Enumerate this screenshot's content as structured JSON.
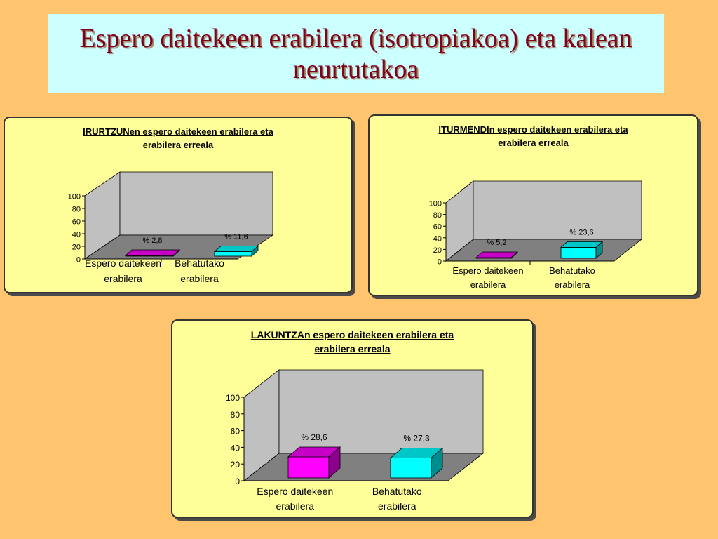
{
  "slide": {
    "title": "Espero daitekeen erabilera (isotropiakoa) eta kalean neurtutakoa"
  },
  "colors": {
    "background": "#FFC56E",
    "title_box": "#CCFFFF",
    "title_text": "#800020",
    "panel": "#FFFF99",
    "wall": "#C0C0C0",
    "floor": "#808080",
    "series_expected": "#FF00FF",
    "series_observed": "#00FFFF"
  },
  "chart_data": [
    {
      "type": "bar",
      "title_line1": "IRURTZUNen espero daitekeen erabilera eta",
      "title_line2": "erabilera erreala",
      "categories": [
        [
          "Espero daitekeen",
          "erabilera"
        ],
        [
          "Behatutako",
          "erabilera"
        ]
      ],
      "values": [
        2.8,
        11.6
      ],
      "data_labels": [
        "% 2,8",
        "% 11,6"
      ],
      "yticks": [
        "0",
        "20",
        "40",
        "60",
        "80",
        "100"
      ],
      "ylim": [
        0,
        100
      ],
      "grid": false,
      "style": "3d-bar"
    },
    {
      "type": "bar",
      "title_line1": "ITURMENDIn espero daitekeen erabilera eta",
      "title_line2": "erabilera erreala",
      "categories": [
        [
          "Espero daitekeen",
          "erabilera"
        ],
        [
          "Behatutako",
          "erabilera"
        ]
      ],
      "values": [
        5.2,
        23.6
      ],
      "data_labels": [
        "% 5,2",
        "% 23,6"
      ],
      "yticks": [
        "0",
        "20",
        "40",
        "60",
        "80",
        "100"
      ],
      "ylim": [
        0,
        100
      ],
      "grid": false,
      "style": "3d-bar"
    },
    {
      "type": "bar",
      "title_line1": "LAKUNTZAn espero daitekeen erabilera eta",
      "title_line2": "erabilera erreala",
      "categories": [
        [
          "Espero daitekeen",
          "erabilera"
        ],
        [
          "Behatutako",
          "erabilera"
        ]
      ],
      "values": [
        28.6,
        27.3
      ],
      "data_labels": [
        "% 28,6",
        "% 27,3"
      ],
      "yticks": [
        "0",
        "20",
        "40",
        "60",
        "80",
        "100"
      ],
      "ylim": [
        0,
        100
      ],
      "grid": false,
      "style": "3d-bar"
    }
  ]
}
